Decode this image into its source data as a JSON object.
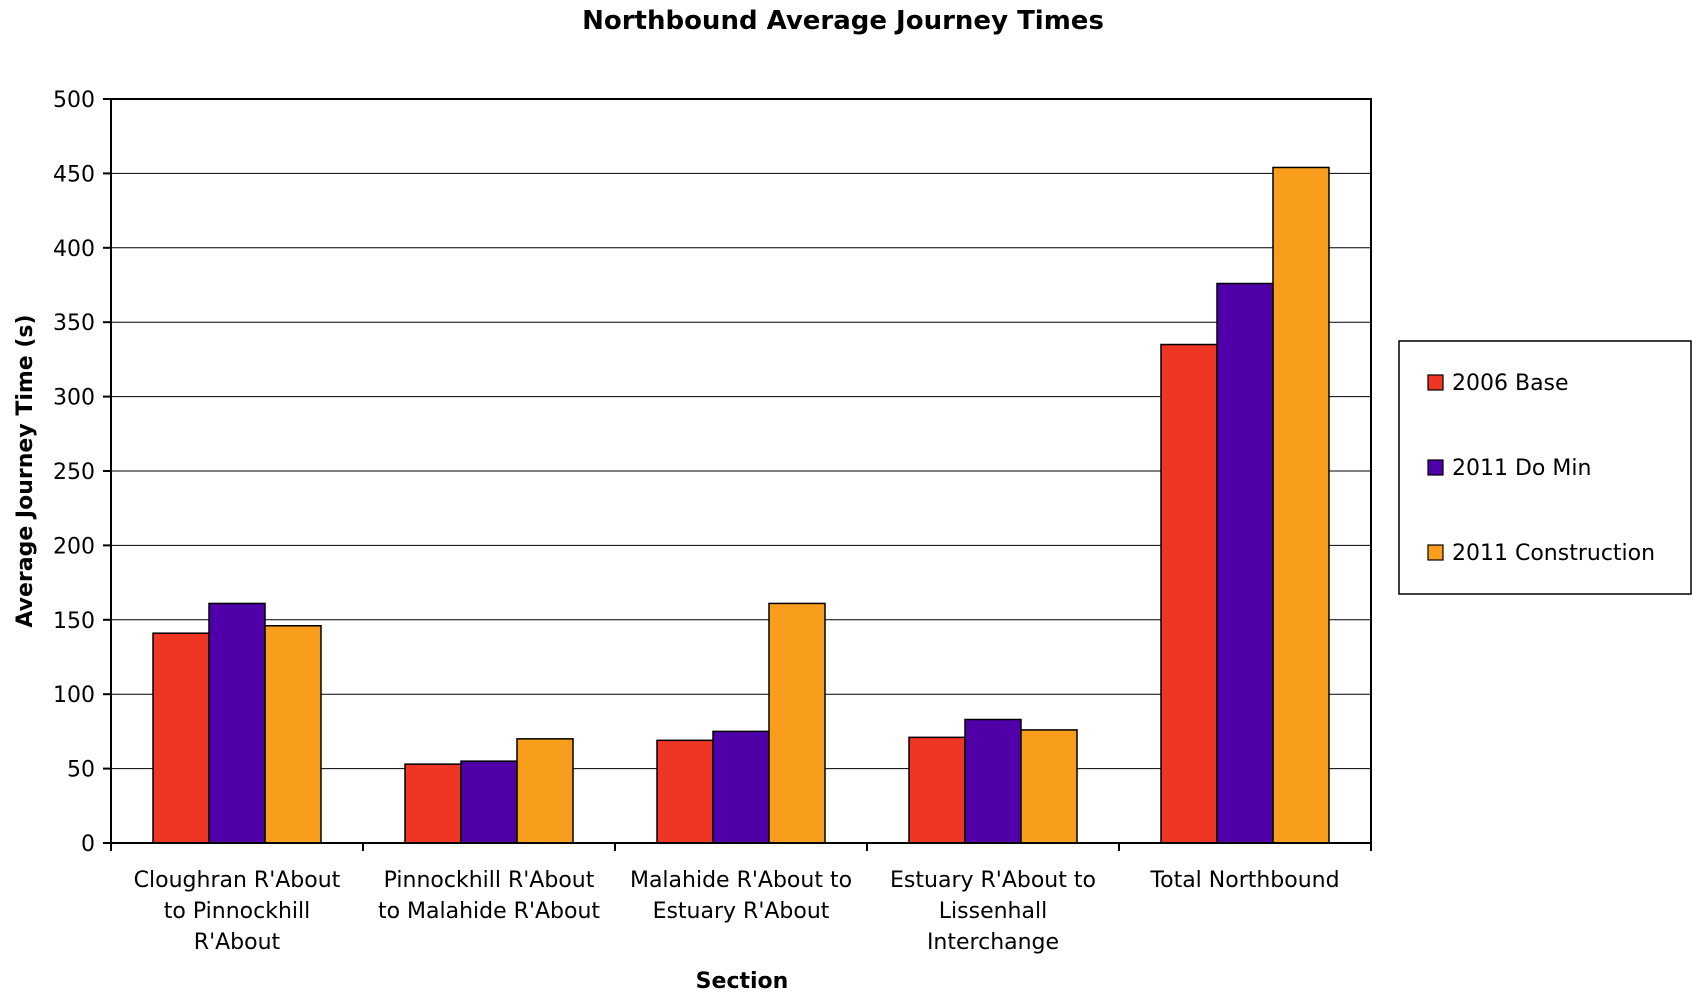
{
  "chart_data": {
    "type": "bar",
    "title": "Northbound Average Journey Times",
    "xlabel": "Section",
    "ylabel": "Average Journey Time (s)",
    "ylim": [
      0,
      500
    ],
    "yticks": [
      0,
      50,
      100,
      150,
      200,
      250,
      300,
      350,
      400,
      450,
      500
    ],
    "grid": true,
    "legend_position": "right",
    "categories": [
      [
        "Cloughran R'About",
        "to Pinnockhill",
        "R'About"
      ],
      [
        "Pinnockhill R'About",
        "to Malahide R'About"
      ],
      [
        "Malahide R'About to",
        "Estuary R'About"
      ],
      [
        "Estuary R'About to",
        "Lissenhall",
        "Interchange"
      ],
      [
        "Total Northbound"
      ]
    ],
    "series": [
      {
        "name": "2006 Base",
        "color": "#ef3523",
        "values": [
          141,
          53,
          69,
          71,
          335
        ]
      },
      {
        "name": "2011 Do Min",
        "color": "#4f00a8",
        "values": [
          161,
          55,
          75,
          83,
          376
        ]
      },
      {
        "name": "2011 Construction",
        "color": "#f99d1c",
        "values": [
          146,
          70,
          161,
          76,
          454
        ]
      }
    ]
  }
}
